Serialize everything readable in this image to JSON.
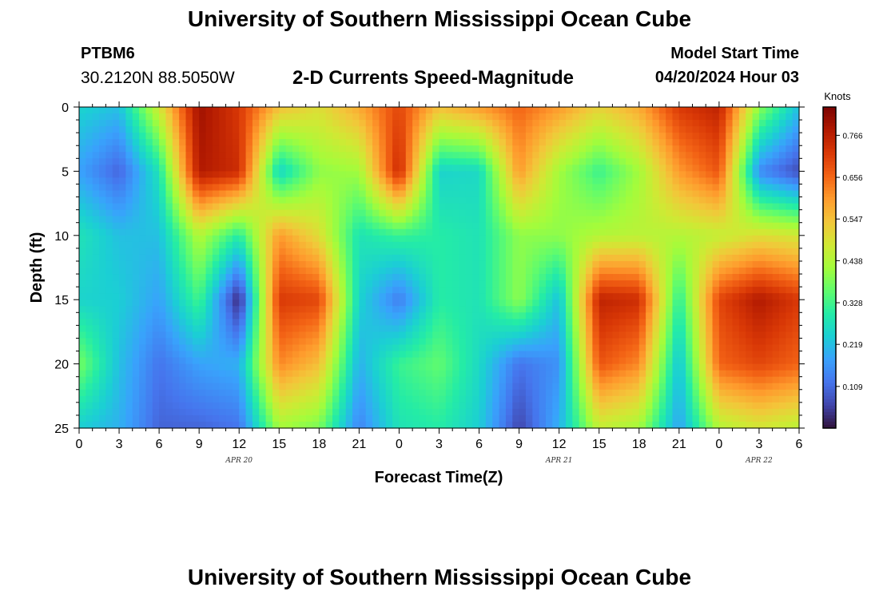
{
  "header": {
    "title": "University of Southern Mississippi Ocean Cube",
    "station": "PTBM6",
    "coordinates": "30.2120N  88.5050W",
    "model_start_label": "Model Start Time",
    "model_start_value": "04/20/2024 Hour 03"
  },
  "footer": {
    "title": "University of Southern Mississippi Ocean Cube"
  },
  "chart_data": {
    "type": "heatmap",
    "title": "2-D Currents Speed-Magnitude",
    "xlabel": "Forecast Time(Z)",
    "ylabel": "Depth (ft)",
    "x_tick_labels": [
      "0",
      "3",
      "6",
      "9",
      "12",
      "15",
      "18",
      "21",
      "0",
      "3",
      "6",
      "9",
      "12",
      "15",
      "18",
      "21",
      "0",
      "3",
      "6"
    ],
    "x_range_hours": [
      0,
      54
    ],
    "date_labels": [
      {
        "label": "APR 20",
        "hour": 12
      },
      {
        "label": "APR 21",
        "hour": 36
      },
      {
        "label": "APR 22",
        "hour": 51
      }
    ],
    "y_tick_labels": [
      "0",
      "5",
      "10",
      "15",
      "20",
      "25"
    ],
    "ylim": [
      25,
      0
    ],
    "colorbar": {
      "unit": "Knots",
      "range": [
        0,
        0.84
      ],
      "tick_labels": [
        "0.766",
        "0.656",
        "0.547",
        "0.438",
        "0.328",
        "0.219",
        "0.109"
      ],
      "tick_values": [
        0.766,
        0.656,
        0.547,
        0.438,
        0.328,
        0.219,
        0.109
      ],
      "colormap": [
        "#30123b",
        "#4145ab",
        "#4675ed",
        "#39a2fc",
        "#1bcfd4",
        "#24eca6",
        "#61fc6c",
        "#a4fc3b",
        "#d1e834",
        "#f3c63a",
        "#fe9b2d",
        "#f36315",
        "#d93806",
        "#b11901",
        "#7a0402"
      ]
    },
    "speed_grid": {
      "description": "speed in knots, depth rows 0,5,10,15,20,25 ft by forecast hour columns 0..54 step 3",
      "depths_ft": [
        0,
        5,
        10,
        15,
        20,
        25
      ],
      "hours": [
        0,
        3,
        6,
        9,
        12,
        15,
        18,
        21,
        24,
        27,
        30,
        33,
        36,
        39,
        42,
        45,
        48,
        51,
        54
      ],
      "values": [
        [
          0.25,
          0.22,
          0.48,
          0.8,
          0.72,
          0.55,
          0.5,
          0.58,
          0.7,
          0.55,
          0.6,
          0.66,
          0.6,
          0.52,
          0.58,
          0.72,
          0.76,
          0.4,
          0.22
        ],
        [
          0.18,
          0.1,
          0.28,
          0.78,
          0.74,
          0.25,
          0.4,
          0.42,
          0.75,
          0.25,
          0.26,
          0.6,
          0.42,
          0.32,
          0.42,
          0.6,
          0.68,
          0.15,
          0.07
        ],
        [
          0.28,
          0.22,
          0.22,
          0.44,
          0.3,
          0.6,
          0.5,
          0.28,
          0.32,
          0.3,
          0.28,
          0.4,
          0.4,
          0.44,
          0.45,
          0.44,
          0.46,
          0.5,
          0.48
        ],
        [
          0.25,
          0.24,
          0.18,
          0.33,
          0.02,
          0.72,
          0.7,
          0.25,
          0.13,
          0.3,
          0.28,
          0.4,
          0.22,
          0.76,
          0.74,
          0.3,
          0.7,
          0.78,
          0.72
        ],
        [
          0.38,
          0.22,
          0.12,
          0.18,
          0.2,
          0.62,
          0.55,
          0.2,
          0.32,
          0.36,
          0.26,
          0.12,
          0.16,
          0.68,
          0.62,
          0.22,
          0.66,
          0.7,
          0.66
        ],
        [
          0.24,
          0.2,
          0.1,
          0.1,
          0.12,
          0.42,
          0.38,
          0.14,
          0.28,
          0.3,
          0.24,
          0.06,
          0.2,
          0.46,
          0.42,
          0.18,
          0.44,
          0.48,
          0.45
        ]
      ]
    }
  }
}
